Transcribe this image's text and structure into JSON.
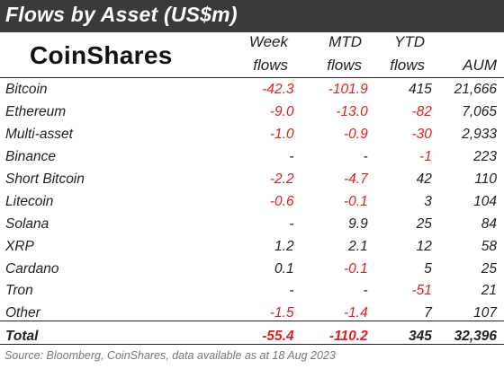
{
  "title": "Flows by Asset (US$m)",
  "logo": "CoinShares",
  "columns": [
    {
      "line1": "Week",
      "line2": "flows"
    },
    {
      "line1": "MTD",
      "line2": "flows"
    },
    {
      "line1": "YTD",
      "line2": "flows"
    },
    {
      "line1": "",
      "line2": "AUM"
    }
  ],
  "rows": [
    {
      "asset": "Bitcoin",
      "week": "-42.3",
      "mtd": "-101.9",
      "ytd": "415",
      "aum": "21,666"
    },
    {
      "asset": "Ethereum",
      "week": "-9.0",
      "mtd": "-13.0",
      "ytd": "-82",
      "aum": "7,065"
    },
    {
      "asset": "Multi-asset",
      "week": "-1.0",
      "mtd": "-0.9",
      "ytd": "-30",
      "aum": "2,933"
    },
    {
      "asset": "Binance",
      "week": "-",
      "mtd": "-",
      "ytd": "-1",
      "aum": "223"
    },
    {
      "asset": "Short Bitcoin",
      "week": "-2.2",
      "mtd": "-4.7",
      "ytd": "42",
      "aum": "110"
    },
    {
      "asset": "Litecoin",
      "week": "-0.6",
      "mtd": "-0.1",
      "ytd": "3",
      "aum": "104"
    },
    {
      "asset": "Solana",
      "week": "-",
      "mtd": "9.9",
      "ytd": "25",
      "aum": "84"
    },
    {
      "asset": "XRP",
      "week": "1.2",
      "mtd": "2.1",
      "ytd": "12",
      "aum": "58"
    },
    {
      "asset": "Cardano",
      "week": "0.1",
      "mtd": "-0.1",
      "ytd": "5",
      "aum": "25"
    },
    {
      "asset": "Tron",
      "week": "-",
      "mtd": "-",
      "ytd": "-51",
      "aum": "21"
    },
    {
      "asset": "Other",
      "week": "-1.5",
      "mtd": "-1.4",
      "ytd": "7",
      "aum": "107"
    }
  ],
  "total": {
    "asset": "Total",
    "week": "-55.4",
    "mtd": "-110.2",
    "ytd": "345",
    "aum": "32,396"
  },
  "source": "Source: Bloomberg, CoinShares, data available as at 18 Aug 2023",
  "colors": {
    "title_bg": "#3a3a3a",
    "negative": "#e02020",
    "text": "#222222"
  }
}
